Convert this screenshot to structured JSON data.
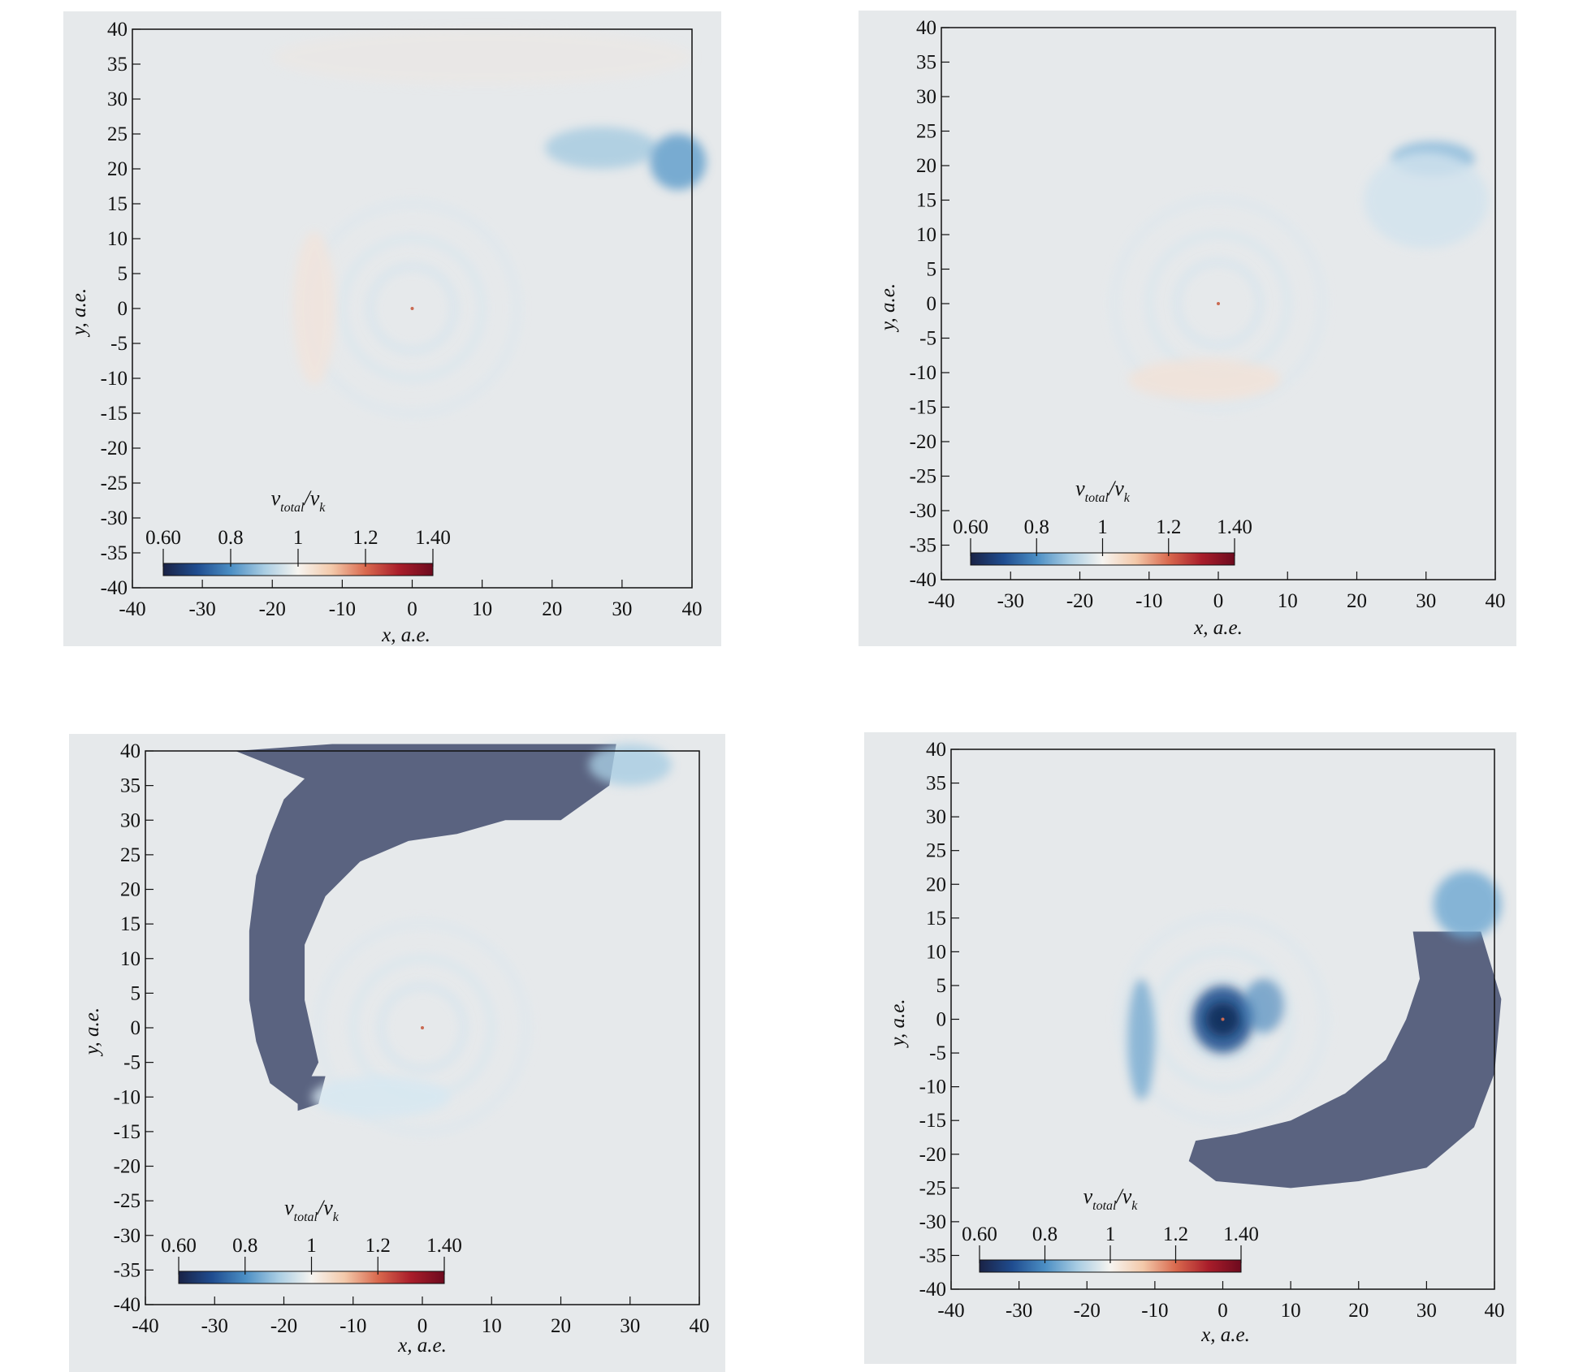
{
  "chart_data": [
    {
      "type": "heatmap",
      "panel": "top-left",
      "xlabel": "x, a.e.",
      "ylabel": "y, a.e.",
      "xlim": [
        -40,
        40
      ],
      "ylim": [
        -40,
        40
      ],
      "xticks": [
        -40,
        -30,
        -20,
        -10,
        0,
        10,
        20,
        30,
        40
      ],
      "yticks": [
        40,
        35,
        30,
        25,
        20,
        15,
        10,
        5,
        0,
        -5,
        -10,
        -15,
        -20,
        -25,
        -30,
        -35,
        -40
      ],
      "colorbar": {
        "title_main": "v",
        "title_sub": "total",
        "title_den": "v",
        "title_den_sub": "k",
        "tick_values": [
          0.6,
          0.8,
          1.0,
          1.2,
          1.4
        ],
        "tick_labels": [
          "0.60",
          "0.8",
          "1",
          "1.2",
          "1.40"
        ],
        "range": [
          0.6,
          1.4
        ],
        "placement": "bottom-left"
      },
      "features": {
        "masked_region": false,
        "dominant_level": 1.0
      }
    },
    {
      "type": "heatmap",
      "panel": "top-right",
      "xlabel": "x, a.e.",
      "ylabel": "y, a.e.",
      "xlim": [
        -40,
        40
      ],
      "ylim": [
        -40,
        40
      ],
      "xticks": [
        -40,
        -30,
        -20,
        -10,
        0,
        10,
        20,
        30,
        40
      ],
      "yticks": [
        40,
        35,
        30,
        25,
        20,
        15,
        10,
        5,
        0,
        -5,
        -10,
        -15,
        -20,
        -25,
        -30,
        -35,
        -40
      ],
      "colorbar": {
        "title_main": "v",
        "title_sub": "total",
        "title_den": "v",
        "title_den_sub": "k",
        "tick_values": [
          0.6,
          0.8,
          1.0,
          1.2,
          1.4
        ],
        "tick_labels": [
          "0.60",
          "0.8",
          "1",
          "1.2",
          "1.40"
        ],
        "range": [
          0.6,
          1.4
        ],
        "placement": "bottom-left"
      },
      "features": {
        "masked_region": false,
        "dominant_level": 1.0
      }
    },
    {
      "type": "heatmap",
      "panel": "bottom-left",
      "xlabel": "x, a.e.",
      "ylabel": "y, a.e.",
      "xlim": [
        -40,
        40
      ],
      "ylim": [
        -40,
        40
      ],
      "xticks": [
        -40,
        -30,
        -20,
        -10,
        0,
        10,
        20,
        30,
        40
      ],
      "yticks": [
        40,
        35,
        30,
        25,
        20,
        15,
        10,
        5,
        0,
        -5,
        -10,
        -15,
        -20,
        -25,
        -30,
        -35,
        -40
      ],
      "colorbar": {
        "title_main": "v",
        "title_sub": "total",
        "title_den": "v",
        "title_den_sub": "k",
        "tick_values": [
          0.6,
          0.8,
          1.0,
          1.2,
          1.4
        ],
        "tick_labels": [
          "0.60",
          "0.8",
          "1",
          "1.2",
          "1.40"
        ],
        "range": [
          0.6,
          1.4
        ],
        "placement": "bottom-left"
      },
      "features": {
        "masked_region": true,
        "masked_color": "#5a6380",
        "dominant_level": 1.0
      }
    },
    {
      "type": "heatmap",
      "panel": "bottom-right",
      "xlabel": "x, a.e.",
      "ylabel": "y, a.e.",
      "xlim": [
        -40,
        40
      ],
      "ylim": [
        -40,
        40
      ],
      "xticks": [
        -40,
        -30,
        -20,
        -10,
        0,
        10,
        20,
        30,
        40
      ],
      "yticks": [
        40,
        35,
        30,
        25,
        20,
        15,
        10,
        5,
        0,
        -5,
        -10,
        -15,
        -20,
        -25,
        -30,
        -35,
        -40
      ],
      "colorbar": {
        "title_main": "v",
        "title_sub": "total",
        "title_den": "v",
        "title_den_sub": "k",
        "tick_values": [
          0.6,
          0.8,
          1.0,
          1.2,
          1.4
        ],
        "tick_labels": [
          "0.60",
          "0.8",
          "1",
          "1.2",
          "1.40"
        ],
        "range": [
          0.6,
          1.4
        ],
        "placement": "bottom-left"
      },
      "features": {
        "masked_region": true,
        "masked_color": "#5a6380",
        "dominant_level": 1.0
      }
    }
  ],
  "colors": {
    "background": "#e6e9eb",
    "masked": "#5a6380",
    "colormap": [
      "#1a2245",
      "#1f4c8f",
      "#4b8ec4",
      "#a9cde3",
      "#f6f4f0",
      "#f3c9aa",
      "#d9694e",
      "#a91d2a",
      "#6d0a1e"
    ]
  }
}
